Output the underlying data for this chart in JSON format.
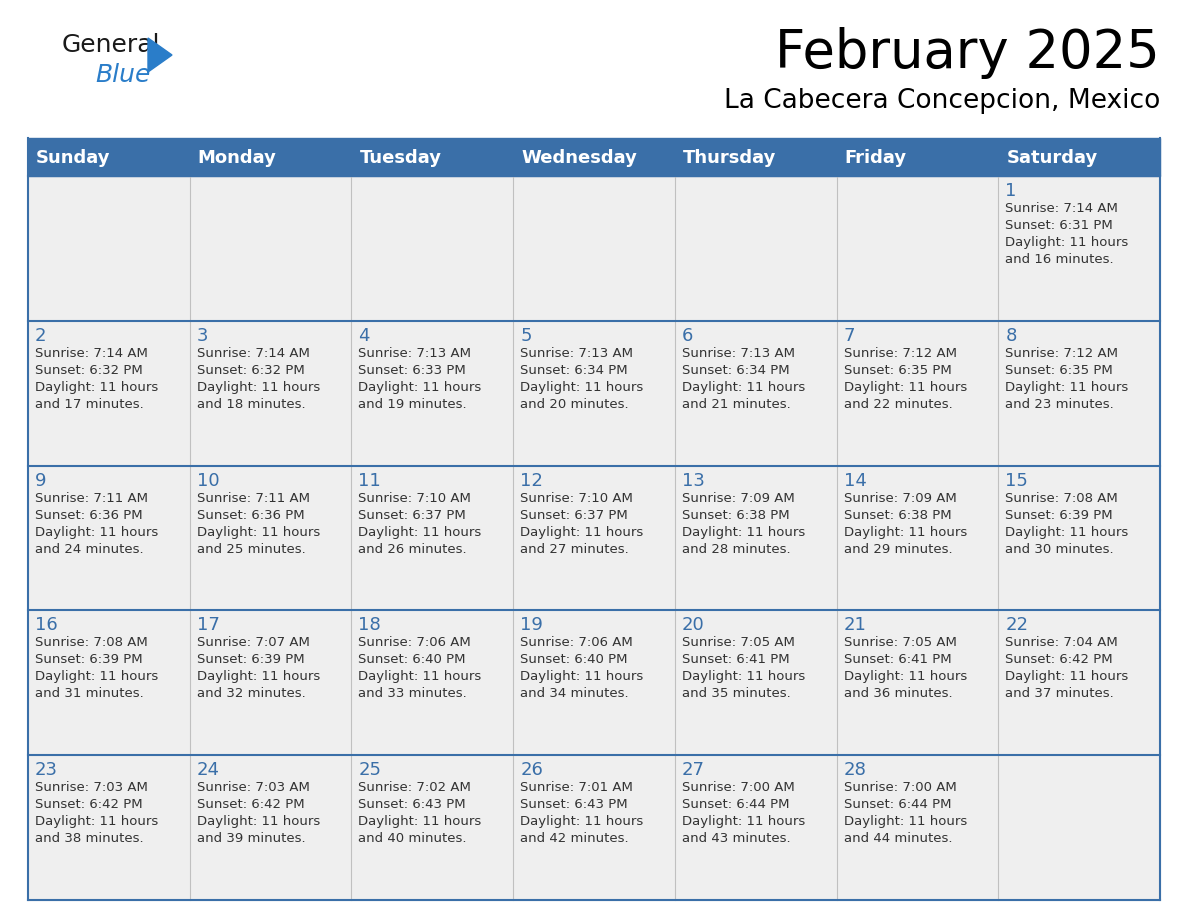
{
  "title": "February 2025",
  "subtitle": "La Cabecera Concepcion, Mexico",
  "header_color": "#3a6fa8",
  "header_text_color": "#ffffff",
  "day_names": [
    "Sunday",
    "Monday",
    "Tuesday",
    "Wednesday",
    "Thursday",
    "Friday",
    "Saturday"
  ],
  "background_color": "#ffffff",
  "cell_bg": "#efefef",
  "line_color": "#3a6fa8",
  "day_num_color": "#3a6fa8",
  "text_color": "#333333",
  "calendar_data": [
    [
      null,
      null,
      null,
      null,
      null,
      null,
      {
        "day": 1,
        "sunrise": "7:14 AM",
        "sunset": "6:31 PM",
        "daylight": "11 hours",
        "daylight2": "and 16 minutes."
      }
    ],
    [
      {
        "day": 2,
        "sunrise": "7:14 AM",
        "sunset": "6:32 PM",
        "daylight": "11 hours",
        "daylight2": "and 17 minutes."
      },
      {
        "day": 3,
        "sunrise": "7:14 AM",
        "sunset": "6:32 PM",
        "daylight": "11 hours",
        "daylight2": "and 18 minutes."
      },
      {
        "day": 4,
        "sunrise": "7:13 AM",
        "sunset": "6:33 PM",
        "daylight": "11 hours",
        "daylight2": "and 19 minutes."
      },
      {
        "day": 5,
        "sunrise": "7:13 AM",
        "sunset": "6:34 PM",
        "daylight": "11 hours",
        "daylight2": "and 20 minutes."
      },
      {
        "day": 6,
        "sunrise": "7:13 AM",
        "sunset": "6:34 PM",
        "daylight": "11 hours",
        "daylight2": "and 21 minutes."
      },
      {
        "day": 7,
        "sunrise": "7:12 AM",
        "sunset": "6:35 PM",
        "daylight": "11 hours",
        "daylight2": "and 22 minutes."
      },
      {
        "day": 8,
        "sunrise": "7:12 AM",
        "sunset": "6:35 PM",
        "daylight": "11 hours",
        "daylight2": "and 23 minutes."
      }
    ],
    [
      {
        "day": 9,
        "sunrise": "7:11 AM",
        "sunset": "6:36 PM",
        "daylight": "11 hours",
        "daylight2": "and 24 minutes."
      },
      {
        "day": 10,
        "sunrise": "7:11 AM",
        "sunset": "6:36 PM",
        "daylight": "11 hours",
        "daylight2": "and 25 minutes."
      },
      {
        "day": 11,
        "sunrise": "7:10 AM",
        "sunset": "6:37 PM",
        "daylight": "11 hours",
        "daylight2": "and 26 minutes."
      },
      {
        "day": 12,
        "sunrise": "7:10 AM",
        "sunset": "6:37 PM",
        "daylight": "11 hours",
        "daylight2": "and 27 minutes."
      },
      {
        "day": 13,
        "sunrise": "7:09 AM",
        "sunset": "6:38 PM",
        "daylight": "11 hours",
        "daylight2": "and 28 minutes."
      },
      {
        "day": 14,
        "sunrise": "7:09 AM",
        "sunset": "6:38 PM",
        "daylight": "11 hours",
        "daylight2": "and 29 minutes."
      },
      {
        "day": 15,
        "sunrise": "7:08 AM",
        "sunset": "6:39 PM",
        "daylight": "11 hours",
        "daylight2": "and 30 minutes."
      }
    ],
    [
      {
        "day": 16,
        "sunrise": "7:08 AM",
        "sunset": "6:39 PM",
        "daylight": "11 hours",
        "daylight2": "and 31 minutes."
      },
      {
        "day": 17,
        "sunrise": "7:07 AM",
        "sunset": "6:39 PM",
        "daylight": "11 hours",
        "daylight2": "and 32 minutes."
      },
      {
        "day": 18,
        "sunrise": "7:06 AM",
        "sunset": "6:40 PM",
        "daylight": "11 hours",
        "daylight2": "and 33 minutes."
      },
      {
        "day": 19,
        "sunrise": "7:06 AM",
        "sunset": "6:40 PM",
        "daylight": "11 hours",
        "daylight2": "and 34 minutes."
      },
      {
        "day": 20,
        "sunrise": "7:05 AM",
        "sunset": "6:41 PM",
        "daylight": "11 hours",
        "daylight2": "and 35 minutes."
      },
      {
        "day": 21,
        "sunrise": "7:05 AM",
        "sunset": "6:41 PM",
        "daylight": "11 hours",
        "daylight2": "and 36 minutes."
      },
      {
        "day": 22,
        "sunrise": "7:04 AM",
        "sunset": "6:42 PM",
        "daylight": "11 hours",
        "daylight2": "and 37 minutes."
      }
    ],
    [
      {
        "day": 23,
        "sunrise": "7:03 AM",
        "sunset": "6:42 PM",
        "daylight": "11 hours",
        "daylight2": "and 38 minutes."
      },
      {
        "day": 24,
        "sunrise": "7:03 AM",
        "sunset": "6:42 PM",
        "daylight": "11 hours",
        "daylight2": "and 39 minutes."
      },
      {
        "day": 25,
        "sunrise": "7:02 AM",
        "sunset": "6:43 PM",
        "daylight": "11 hours",
        "daylight2": "and 40 minutes."
      },
      {
        "day": 26,
        "sunrise": "7:01 AM",
        "sunset": "6:43 PM",
        "daylight": "11 hours",
        "daylight2": "and 42 minutes."
      },
      {
        "day": 27,
        "sunrise": "7:00 AM",
        "sunset": "6:44 PM",
        "daylight": "11 hours",
        "daylight2": "and 43 minutes."
      },
      {
        "day": 28,
        "sunrise": "7:00 AM",
        "sunset": "6:44 PM",
        "daylight": "11 hours",
        "daylight2": "and 44 minutes."
      },
      null
    ]
  ],
  "logo_general_color": "#1a1a1a",
  "logo_blue_color": "#2a7dc9",
  "title_fontsize": 38,
  "subtitle_fontsize": 19,
  "header_fontsize": 13,
  "day_num_fontsize": 13,
  "cell_text_fontsize": 9.5
}
